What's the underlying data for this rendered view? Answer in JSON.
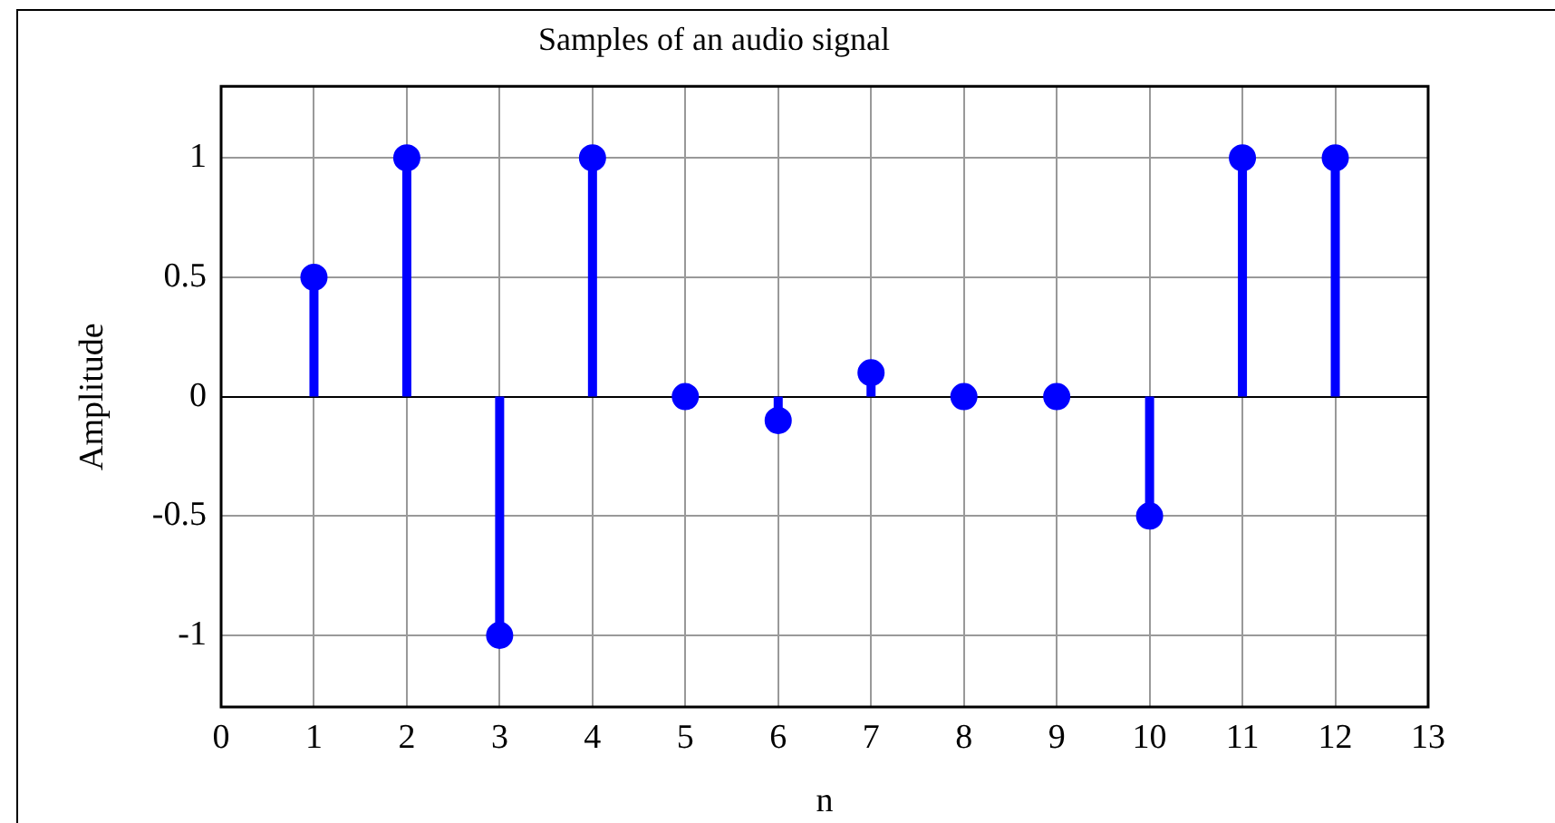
{
  "chart_data": {
    "type": "lollipop",
    "title": "Samples of an audio signal",
    "xlabel": "n",
    "ylabel": "Amplitude",
    "x": [
      1,
      2,
      3,
      4,
      5,
      6,
      7,
      8,
      9,
      10,
      11,
      12
    ],
    "series": [
      {
        "color": "#0000ff",
        "values": [
          0.5,
          1,
          -1,
          1,
          0,
          -0.1,
          0.1,
          0,
          0,
          -0.5,
          1,
          1
        ]
      }
    ],
    "xlim": [
      0,
      13
    ],
    "xticks": [
      0,
      1,
      2,
      3,
      4,
      5,
      6,
      7,
      8,
      9,
      10,
      11,
      12,
      13
    ],
    "ylim": [
      -1.3,
      1.3
    ],
    "yticks": [
      -1,
      -0.5,
      0,
      0.5,
      1
    ],
    "grid": true,
    "marker": "circle"
  }
}
